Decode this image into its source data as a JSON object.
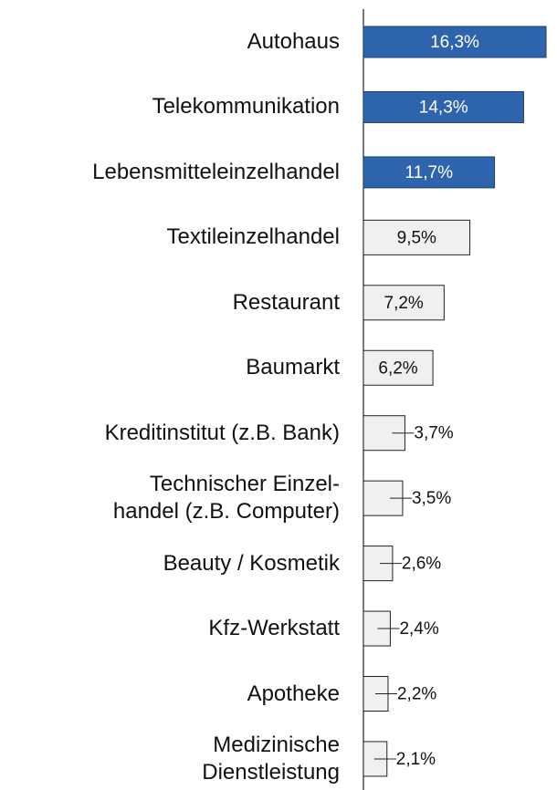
{
  "chart_data": {
    "type": "bar",
    "orientation": "horizontal",
    "categories": [
      "Autohaus",
      "Telekommunikation",
      "Lebensmitteleinzelhandel",
      "Textileinzelhandel",
      "Restaurant",
      "Baumarkt",
      "Kreditinstitut (z.B. Bank)",
      "Technischer Einzel-\nhandel (z.B. Computer)",
      "Beauty / Kosmetik",
      "Kfz-Werkstatt",
      "Apotheke",
      "Medizinische \nDienstleistung"
    ],
    "values": [
      16.3,
      14.3,
      11.7,
      9.5,
      7.2,
      6.2,
      3.7,
      3.5,
      2.6,
      2.4,
      2.2,
      2.1
    ],
    "value_labels": [
      "16,3%",
      "14,3%",
      "11,7%",
      "9,5%",
      "7,2%",
      "6,2%",
      "3,7%",
      "3,5%",
      "2,6%",
      "2,4%",
      "2,2%",
      "2,1%"
    ],
    "colors": [
      "#2e64ad",
      "#2e64ad",
      "#2e64ad",
      "#eef0f2",
      "#eef0f2",
      "#eef0f2",
      "#eef0f2",
      "#eef0f2",
      "#eef0f2",
      "#eef0f2",
      "#eef0f2",
      "#eef0f2"
    ]
  }
}
